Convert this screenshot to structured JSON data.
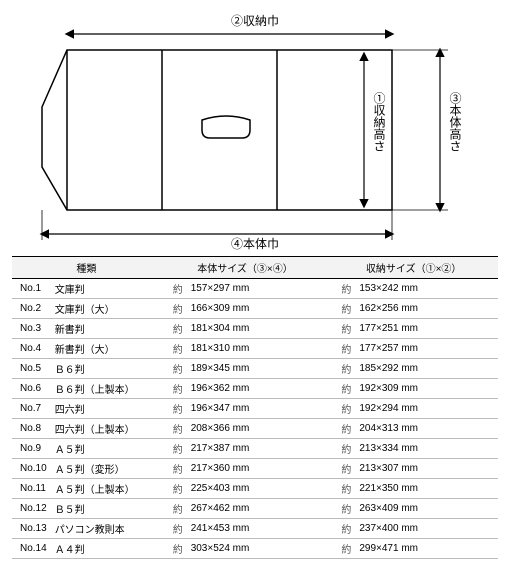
{
  "diagram": {
    "stroke": "#000000",
    "stroke_width": 1.5,
    "fill": "#ffffff",
    "labels": {
      "top": "②収納巾",
      "bottom": "④本体巾",
      "right_inner": "①収納高さ",
      "right_outer": "③本体高さ"
    }
  },
  "table": {
    "headers": {
      "type": "種類",
      "body": "本体サイズ（③×④）",
      "storage": "収納サイズ（①×②）"
    },
    "yaku": "約",
    "unit": "mm",
    "rows": [
      {
        "no": "No.1",
        "name": "文庫判",
        "body": "157×297",
        "storage": "153×242"
      },
      {
        "no": "No.2",
        "name": "文庫判（大）",
        "body": "166×309",
        "storage": "162×256"
      },
      {
        "no": "No.3",
        "name": "新書判",
        "body": "181×304",
        "storage": "177×251"
      },
      {
        "no": "No.4",
        "name": "新書判（大）",
        "body": "181×310",
        "storage": "177×257"
      },
      {
        "no": "No.5",
        "name": "Ｂ６判",
        "body": "189×345",
        "storage": "185×292"
      },
      {
        "no": "No.6",
        "name": "Ｂ６判（上製本）",
        "body": "196×362",
        "storage": "192×309"
      },
      {
        "no": "No.7",
        "name": "四六判",
        "body": "196×347",
        "storage": "192×294"
      },
      {
        "no": "No.8",
        "name": "四六判（上製本）",
        "body": "208×366",
        "storage": "204×313"
      },
      {
        "no": "No.9",
        "name": "Ａ５判",
        "body": "217×387",
        "storage": "213×334"
      },
      {
        "no": "No.10",
        "name": "Ａ５判（変形）",
        "body": "217×360",
        "storage": "213×307"
      },
      {
        "no": "No.11",
        "name": "Ａ５判（上製本）",
        "body": "225×403",
        "storage": "221×350"
      },
      {
        "no": "No.12",
        "name": "Ｂ５判",
        "body": "267×462",
        "storage": "263×409"
      },
      {
        "no": "No.13",
        "name": "パソコン教則本",
        "body": "241×453",
        "storage": "237×400"
      },
      {
        "no": "No.14",
        "name": "Ａ４判",
        "body": "303×524",
        "storage": "299×471"
      }
    ]
  }
}
